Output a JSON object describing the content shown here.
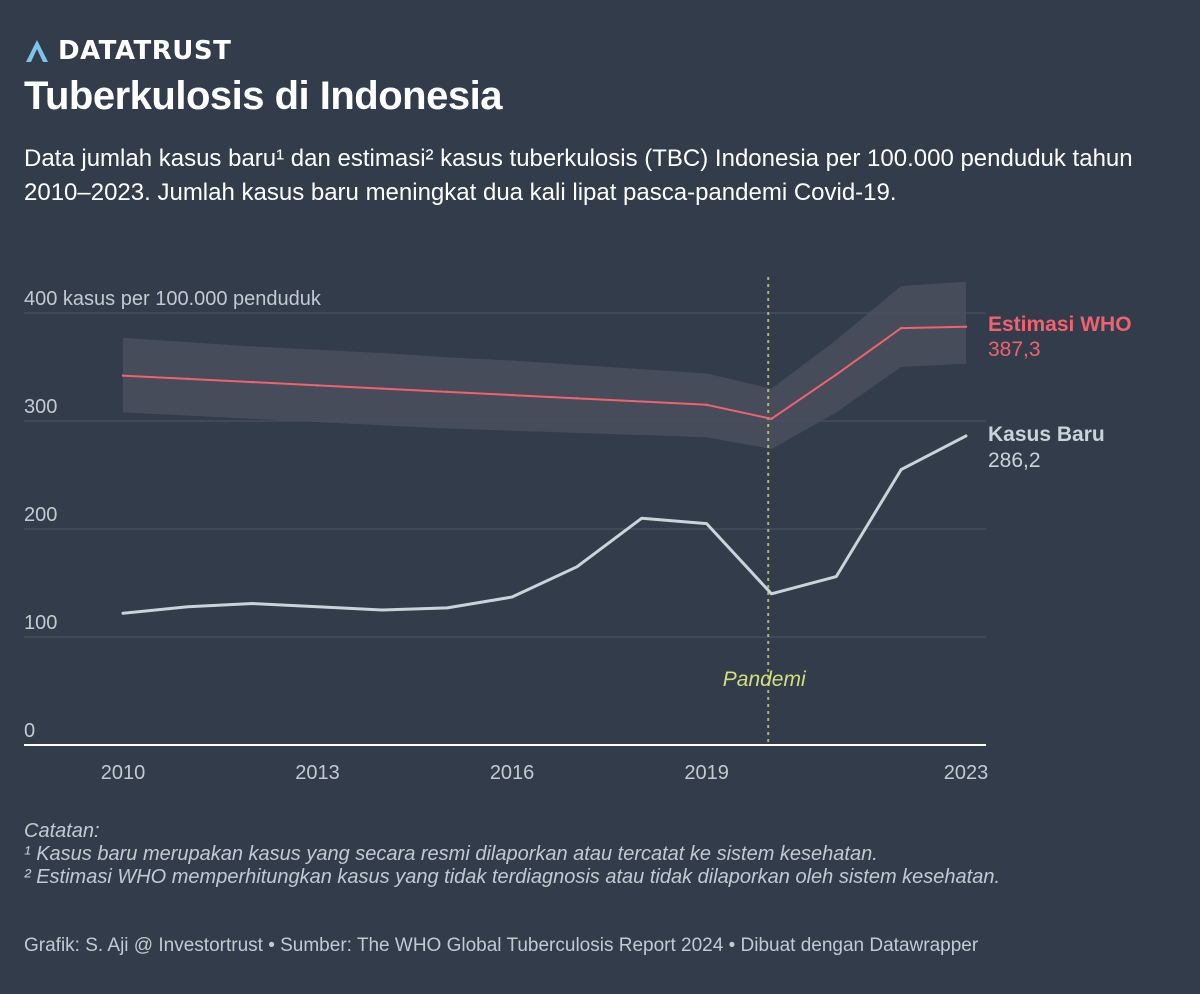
{
  "brand": {
    "name": "DATATRUST",
    "icon": "datatrust-logo-icon",
    "icon_color": "#7ec3e8"
  },
  "header": {
    "title": "Tuberkulosis di Indonesia",
    "subtitle": "Data jumlah kasus baru¹ dan estimasi² kasus tuberkulosis (TBC) Indonesia per 100.000 penduduk tahun 2010–2023. Jumlah kasus baru meningkat dua kali lipat pasca-pandemi Covid-19."
  },
  "chart_data": {
    "type": "line",
    "title": "Tuberkulosis di Indonesia",
    "xlim": [
      2010,
      2023
    ],
    "ylim": [
      0,
      400
    ],
    "x_ticks": [
      "2010",
      "2013",
      "2016",
      "2019",
      "2023"
    ],
    "y_ticks": [
      "0",
      "100",
      "200",
      "300",
      "400 kasus per 100.000 penduduk"
    ],
    "y_tick_values": [
      0,
      100,
      200,
      300,
      400
    ],
    "grid": true,
    "x": [
      2010,
      2011,
      2012,
      2013,
      2014,
      2015,
      2016,
      2017,
      2018,
      2019,
      2020,
      2021,
      2022,
      2023
    ],
    "series": [
      {
        "name": "Estimasi WHO",
        "color": "#f0626e",
        "label_value": "387,3",
        "values": [
          342,
          339,
          336,
          333,
          330,
          327,
          324,
          321,
          318,
          315,
          302,
          343,
          386,
          387.3
        ],
        "band_low": [
          308,
          305,
          302,
          299,
          296,
          293,
          291,
          289,
          287,
          285,
          274,
          308,
          350,
          353
        ],
        "band_high": [
          377,
          373,
          369,
          366,
          363,
          359,
          356,
          352,
          348,
          344,
          330,
          375,
          425,
          429
        ],
        "band_color": "#4a4f5c"
      },
      {
        "name": "Kasus Baru",
        "color": "#c9d3da",
        "label_value": "286,2",
        "values": [
          122,
          128,
          131,
          128,
          125,
          127,
          137,
          165,
          210,
          205,
          140,
          156,
          255,
          286.2
        ]
      }
    ],
    "annotation": {
      "x": 2019.95,
      "label": "Pandemi",
      "color": "#d4de7e"
    }
  },
  "notes": {
    "heading": "Catatan:",
    "note1": "¹ Kasus baru merupakan kasus yang secara resmi dilaporkan atau tercatat ke sistem kesehatan.",
    "note2": "² Estimasi WHO memperhitungkan kasus yang tidak terdiagnosis atau tidak dilaporkan oleh sistem kesehatan."
  },
  "footer": {
    "text": "Grafik: S. Aji @ Investortrust • Sumber: The WHO Global Tuberculosis Report 2024 • Dibuat dengan Datawrapper"
  },
  "colors": {
    "background": "#323c4b",
    "grid": "#4c5766",
    "axis": "#ffffff",
    "tick_text": "#c3c9d1"
  }
}
